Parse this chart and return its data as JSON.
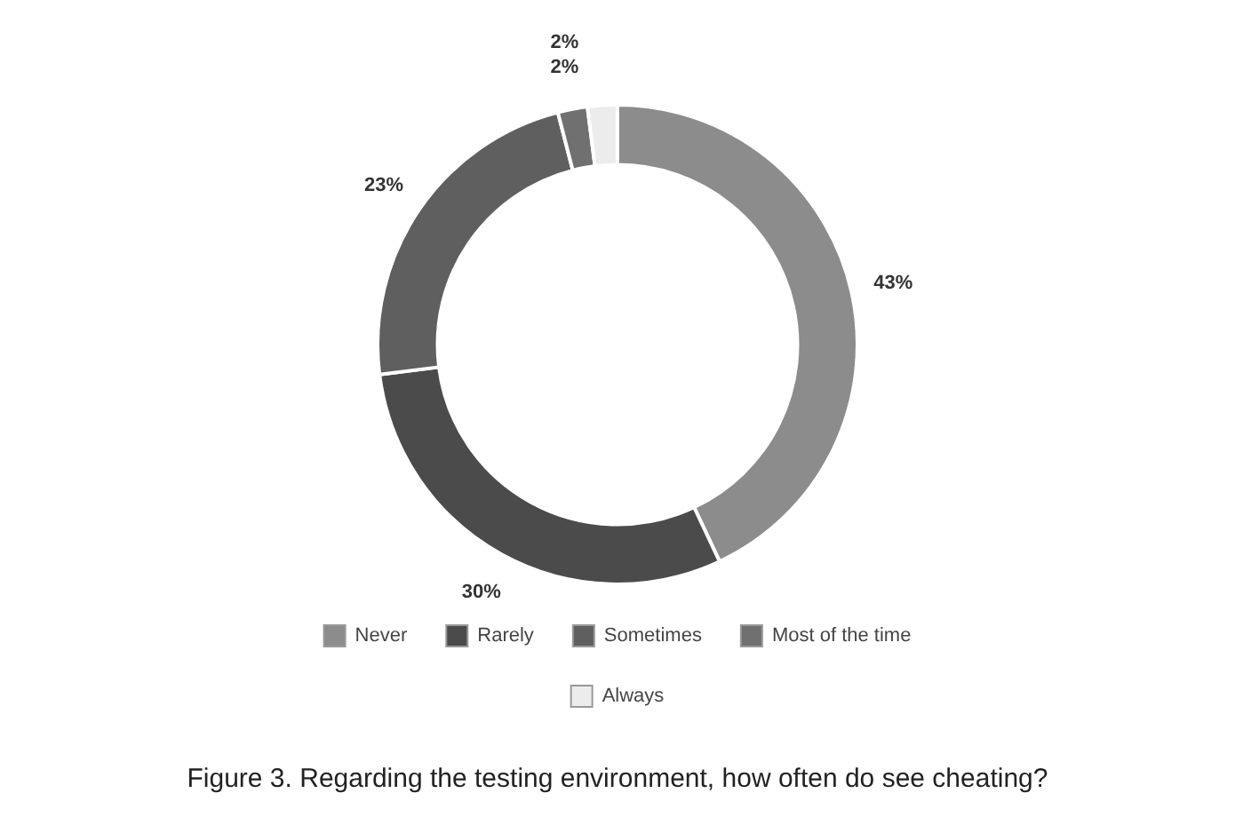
{
  "chart_data": {
    "type": "donut",
    "categories": [
      "Never",
      "Rarely",
      "Sometimes",
      "Most of the time",
      "Always"
    ],
    "values": [
      43,
      30,
      23,
      2,
      2
    ],
    "colors": [
      "#8c8c8c",
      "#4b4b4b",
      "#5f5f5f",
      "#707070",
      "#ececec"
    ],
    "value_labels": [
      "43%",
      "30%",
      "23%",
      "2%",
      "2%"
    ],
    "legend": "bottom",
    "annotations": [
      "Figure 3. Regarding the testing environment, how often do see cheating?"
    ]
  }
}
